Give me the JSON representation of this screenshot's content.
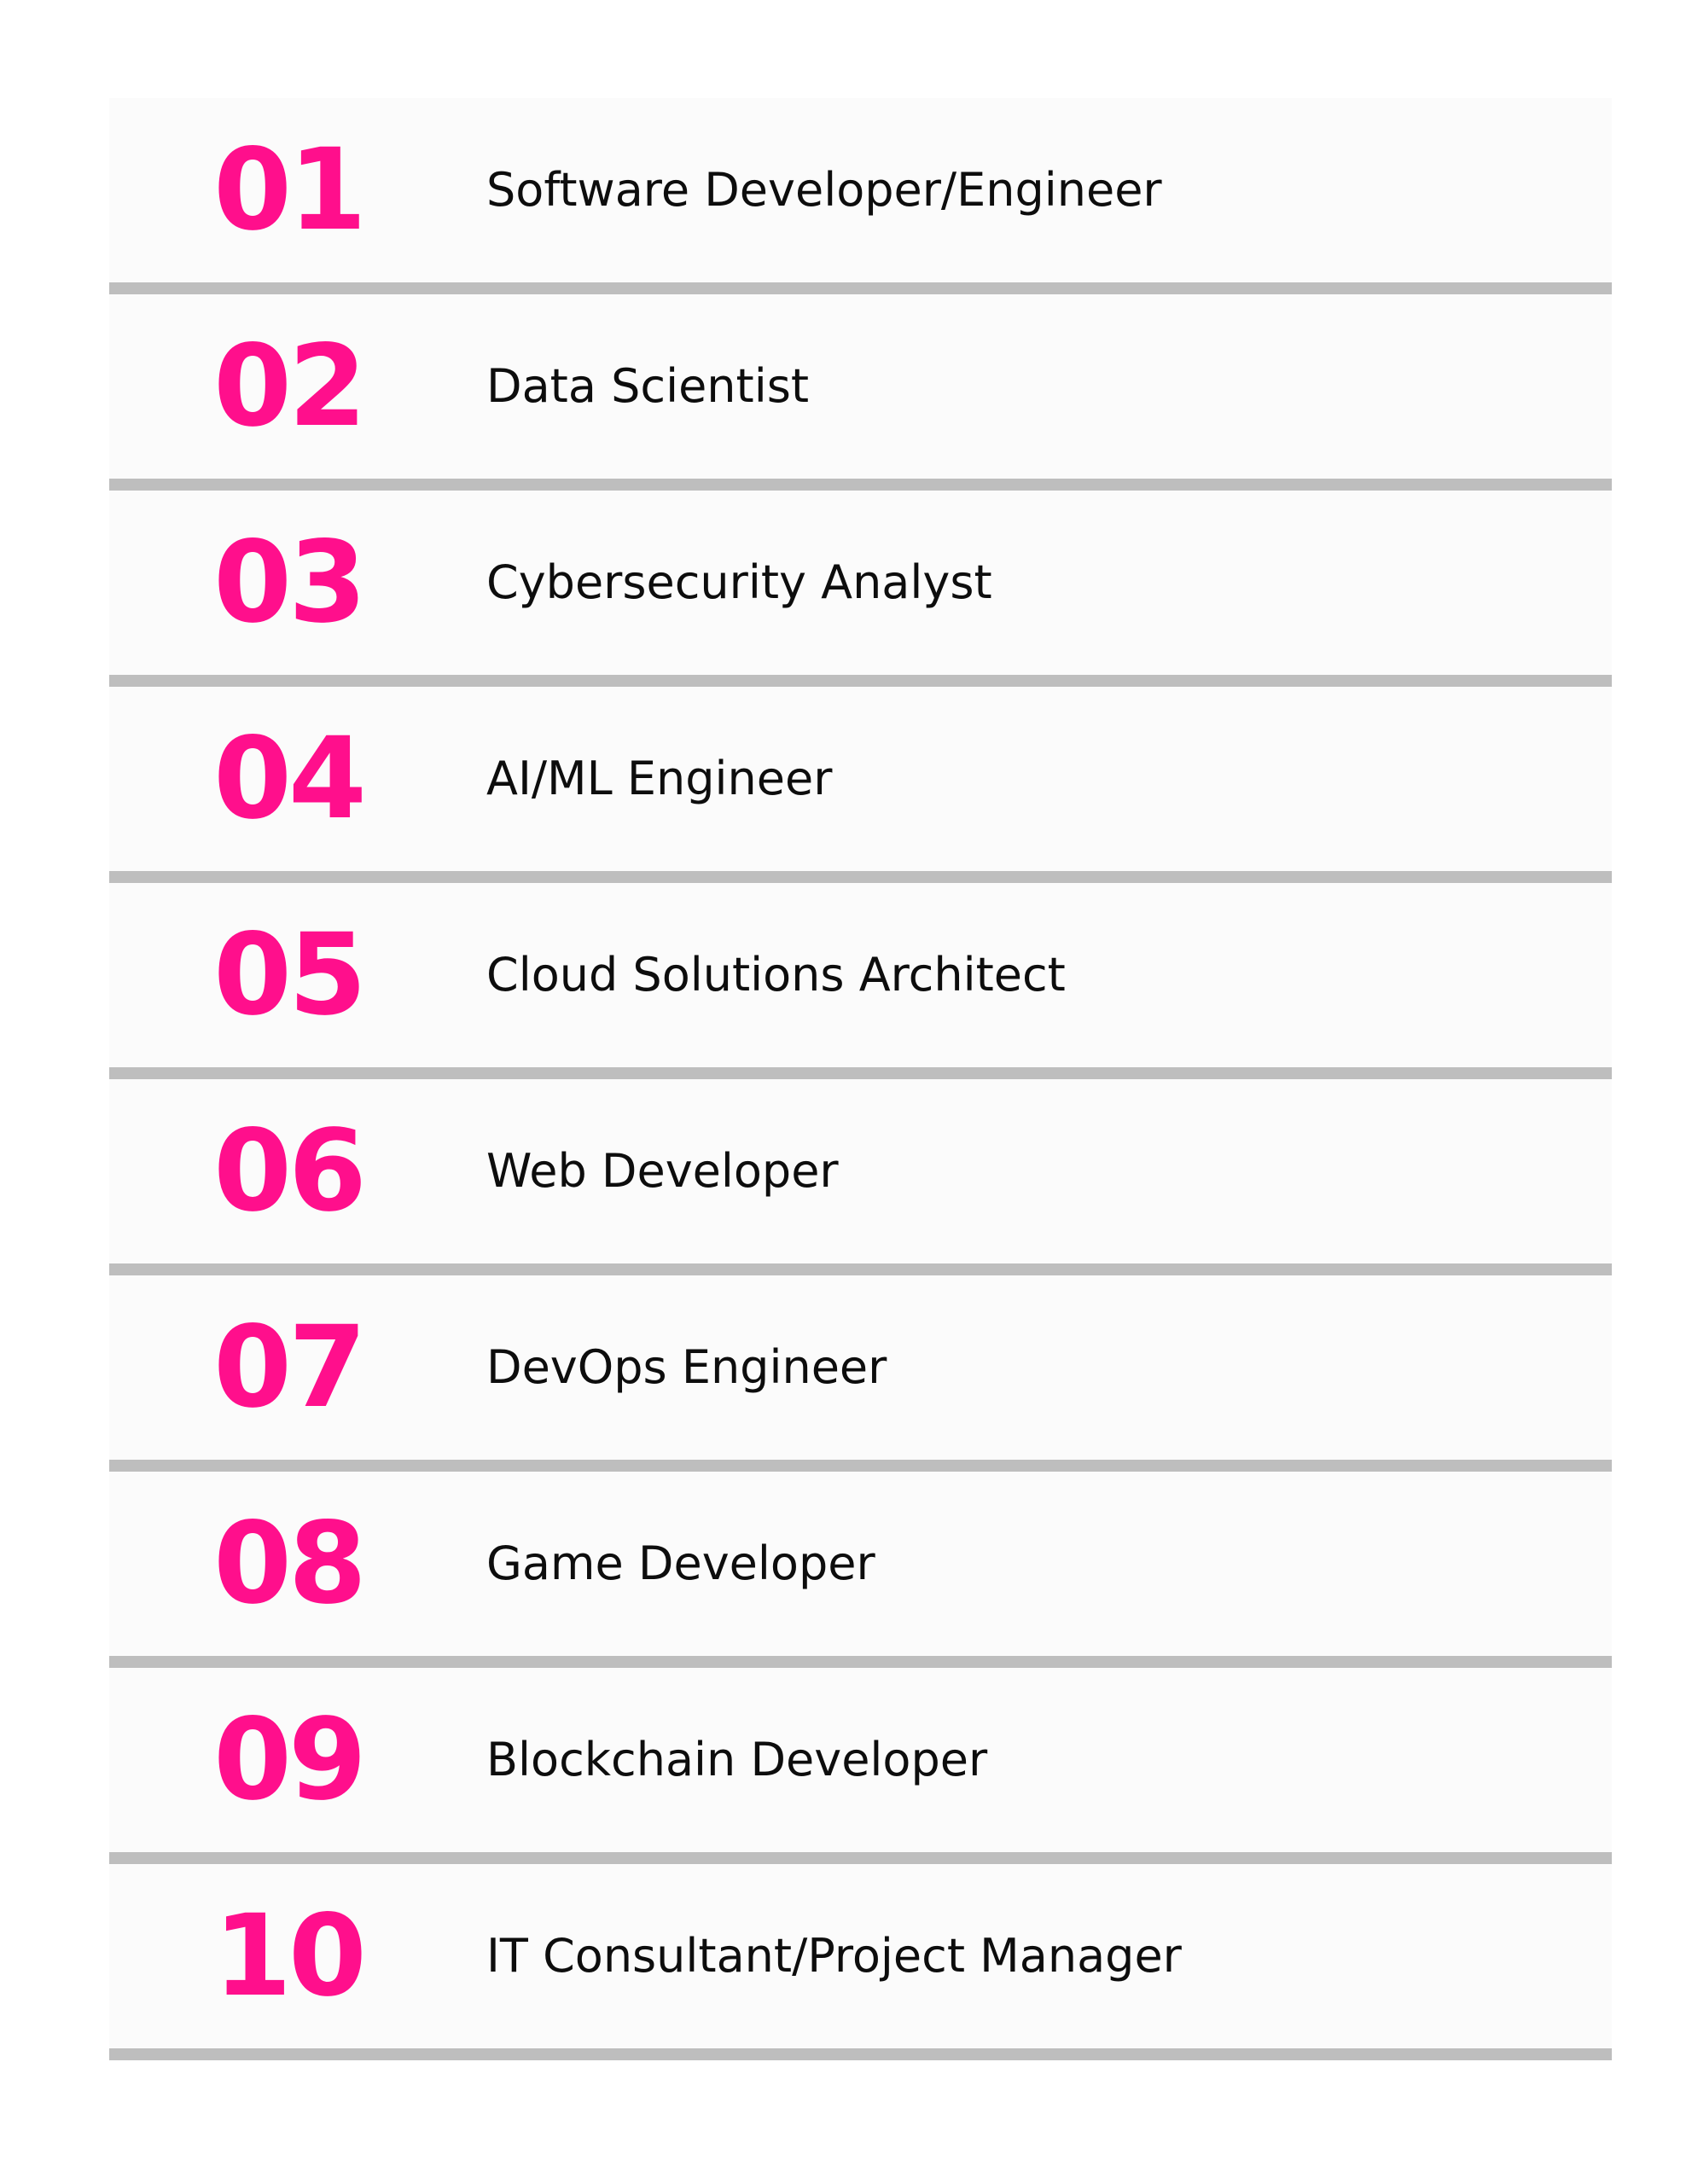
{
  "colors": {
    "accent": "#ff0f8c",
    "text": "#0d0d0d",
    "divider": "#bebebe",
    "panel": "#fbfbfb"
  },
  "items": [
    {
      "number": "01",
      "title": "Software Developer/Engineer"
    },
    {
      "number": "02",
      "title": "Data Scientist"
    },
    {
      "number": "03",
      "title": "Cybersecurity Analyst"
    },
    {
      "number": "04",
      "title": "AI/ML Engineer"
    },
    {
      "number": "05",
      "title": "Cloud Solutions Architect"
    },
    {
      "number": "06",
      "title": "Web Developer"
    },
    {
      "number": "07",
      "title": "DevOps Engineer"
    },
    {
      "number": "08",
      "title": "Game Developer"
    },
    {
      "number": "09",
      "title": "Blockchain Developer"
    },
    {
      "number": "10",
      "title": "IT Consultant/Project Manager"
    }
  ]
}
